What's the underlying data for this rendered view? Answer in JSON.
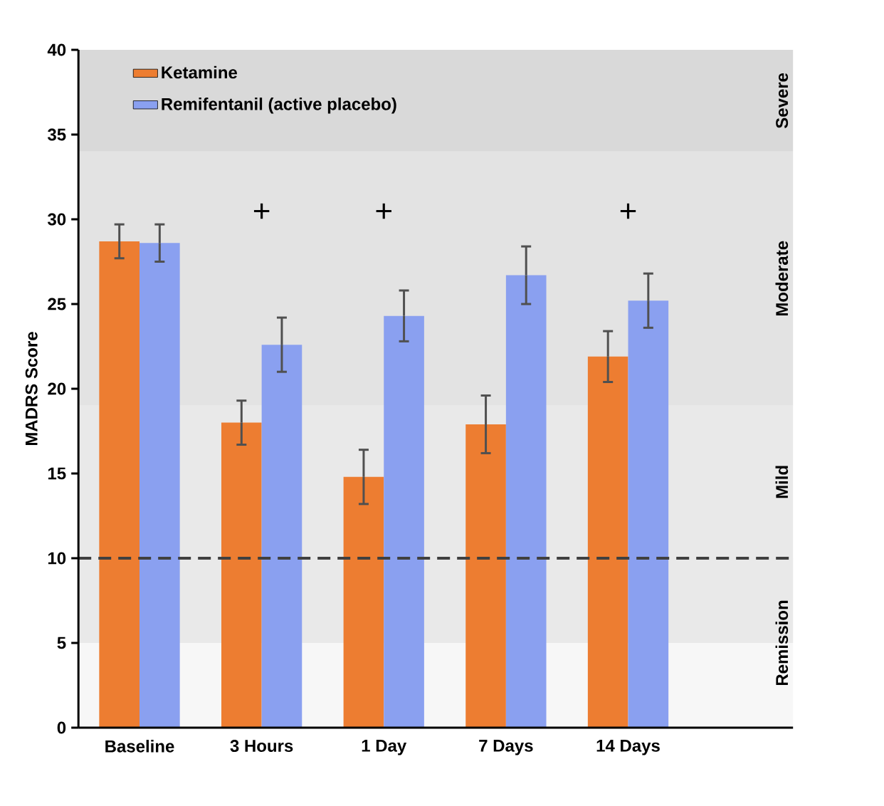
{
  "chart_data": {
    "type": "bar",
    "ylabel": "MADRS Score",
    "categories": [
      "Baseline",
      "3 Hours",
      "1 Day",
      "7 Days",
      "14 Days"
    ],
    "series": [
      {
        "name": "Ketamine",
        "color": "#ed7d31",
        "values": [
          28.7,
          18.0,
          14.8,
          17.9,
          21.9
        ],
        "errors": [
          1.0,
          1.3,
          1.6,
          1.7,
          1.5
        ]
      },
      {
        "name": "Remifentanil (active placebo)",
        "color": "#8aa0f0",
        "values": [
          28.6,
          22.6,
          24.3,
          26.7,
          25.2
        ],
        "errors": [
          1.1,
          1.6,
          1.5,
          1.7,
          1.6
        ]
      }
    ],
    "ylim": [
      0,
      40
    ],
    "yticks": [
      0,
      5,
      10,
      15,
      20,
      25,
      30,
      35,
      40
    ],
    "bands": [
      {
        "axis": "y",
        "from": 0,
        "to": 10,
        "label": "Remission",
        "color": "#f7f7f7"
      },
      {
        "axis": "y",
        "from": 5,
        "to": 10,
        "label": null,
        "color": "#e9e9e9"
      },
      {
        "axis": "y",
        "from": 10,
        "to": 19,
        "label": "Mild",
        "color": "#e9e9e9"
      },
      {
        "axis": "y",
        "from": 19,
        "to": 34,
        "label": "Moderate",
        "color": "#e3e3e3"
      },
      {
        "axis": "y",
        "from": 34,
        "to": 40,
        "label": "Severe",
        "color": "#d9d9d9"
      }
    ],
    "ref_lines": [
      {
        "axis": "y",
        "value": 10,
        "label": null,
        "color": "#404040",
        "line_style": "dashed"
      }
    ],
    "annotations": [
      "+",
      "+",
      "+"
    ],
    "legend": "top left",
    "grid": false
  }
}
